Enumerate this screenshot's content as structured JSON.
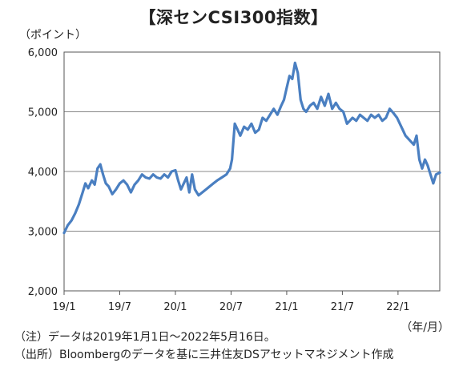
{
  "chart_data": {
    "type": "line",
    "title": "【深センCSI300指数】",
    "ylabel": "（ポイント）",
    "xlabel": "（年/月）",
    "ylim": [
      2000,
      6000
    ],
    "yticks": [
      "6,000",
      "5,000",
      "4,000",
      "3,000",
      "2,000"
    ],
    "ytick_values": [
      6000,
      5000,
      4000,
      3000,
      2000
    ],
    "xticks": [
      "19/1",
      "19/7",
      "20/1",
      "20/7",
      "21/1",
      "21/7",
      "22/1"
    ],
    "xtick_months": [
      0,
      6,
      12,
      18,
      24,
      30,
      36
    ],
    "xlim_months": [
      0,
      40.5
    ],
    "grid": "horizontal",
    "line_color": "#4a7fc1",
    "series": [
      {
        "x": [
          0,
          0.4,
          0.8,
          1.2,
          1.6,
          2.0,
          2.3,
          2.6,
          3.0,
          3.3,
          3.6,
          3.9,
          4.2,
          4.5,
          4.8,
          5.2,
          5.6,
          6.0,
          6.4,
          6.8,
          7.2,
          7.6,
          8.0,
          8.4,
          8.8,
          9.2,
          9.6,
          10.0,
          10.4,
          10.8,
          11.2,
          11.6,
          12.0,
          12.3,
          12.6,
          12.9,
          13.2,
          13.5,
          13.8,
          14.1,
          14.5,
          14.9,
          15.3,
          15.7,
          16.1,
          16.5,
          17.0,
          17.5,
          17.9,
          18.1,
          18.4,
          18.7,
          19.0,
          19.4,
          19.8,
          20.2,
          20.6,
          21.0,
          21.4,
          21.8,
          22.2,
          22.6,
          23.0,
          23.4,
          23.7,
          24.0,
          24.3,
          24.6,
          24.9,
          25.2,
          25.5,
          25.8,
          26.1,
          26.5,
          26.9,
          27.3,
          27.7,
          28.1,
          28.5,
          28.9,
          29.3,
          29.7,
          30.1,
          30.5,
          30.8,
          31.1,
          31.5,
          31.9,
          32.3,
          32.7,
          33.1,
          33.5,
          33.9,
          34.3,
          34.7,
          35.1,
          35.5,
          35.9,
          36.2,
          36.5,
          36.8,
          37.1,
          37.4,
          37.7,
          38.0,
          38.3,
          38.6,
          38.9,
          39.2,
          39.5,
          39.8,
          40.1,
          40.5
        ],
        "y": [
          2970,
          3100,
          3180,
          3300,
          3450,
          3650,
          3800,
          3720,
          3850,
          3780,
          4050,
          4120,
          3950,
          3800,
          3750,
          3620,
          3700,
          3800,
          3850,
          3780,
          3650,
          3780,
          3850,
          3950,
          3900,
          3880,
          3950,
          3900,
          3880,
          3950,
          3900,
          4000,
          4020,
          3850,
          3700,
          3800,
          3900,
          3650,
          3950,
          3700,
          3600,
          3650,
          3700,
          3750,
          3800,
          3850,
          3900,
          3950,
          4050,
          4200,
          4800,
          4700,
          4600,
          4750,
          4700,
          4800,
          4650,
          4700,
          4900,
          4850,
          4950,
          5050,
          4950,
          5100,
          5200,
          5400,
          5600,
          5550,
          5820,
          5650,
          5200,
          5050,
          5000,
          5100,
          5150,
          5050,
          5250,
          5100,
          5300,
          5050,
          5150,
          5050,
          5000,
          4800,
          4850,
          4900,
          4850,
          4950,
          4900,
          4850,
          4950,
          4900,
          4950,
          4850,
          4900,
          5050,
          4980,
          4900,
          4800,
          4700,
          4600,
          4550,
          4500,
          4450,
          4600,
          4200,
          4050,
          4200,
          4100,
          3950,
          3800,
          3950,
          3980
        ]
      }
    ]
  },
  "notes": {
    "note1": "（注）データは2019年1月1日～2022年5月16日。",
    "note2": "（出所）Bloombergのデータを基に三井住友DSアセットマネジメント作成"
  }
}
